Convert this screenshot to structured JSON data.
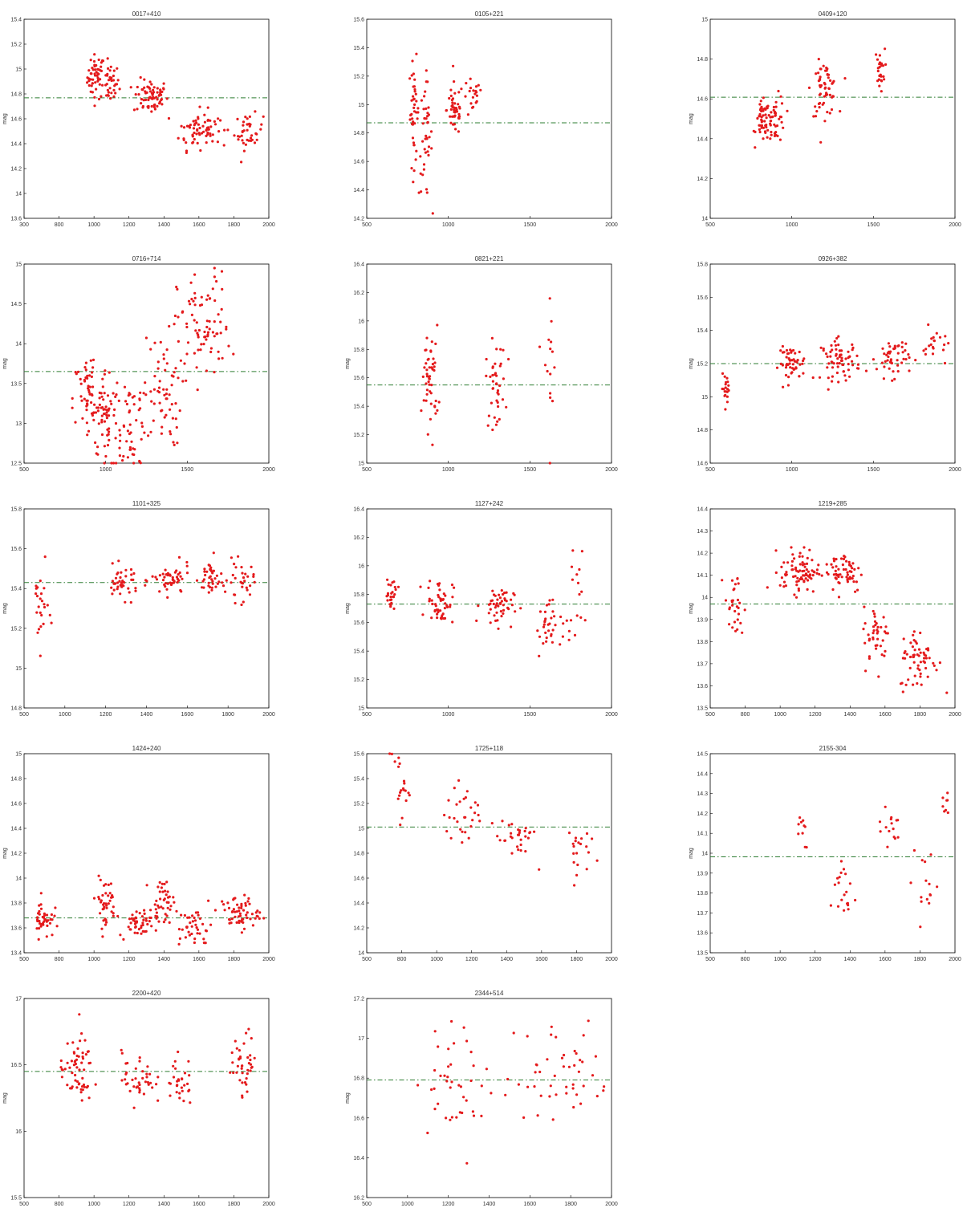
{
  "colors": {
    "points": "#e41a1c",
    "mean_line": "#2e7d32",
    "axis": "#000000"
  },
  "chart_data": [
    {
      "type": "scatter",
      "title": "0017+410",
      "xlabel": "",
      "ylabel": "mag",
      "xlim": [
        300,
        2000
      ],
      "ylim": [
        13.6,
        15.4
      ],
      "xticks": [
        "300",
        "800",
        "1000",
        "1200",
        "1400",
        "1600",
        "1800",
        "2000"
      ],
      "yticks": [
        "13.6",
        "14",
        "14.2",
        "14.4",
        "14.6",
        "14.8",
        "15",
        "15.2",
        "15.4"
      ],
      "mean": 14.69,
      "clusters": [
        [
          800,
          14.88,
          30,
          0.1,
          50
        ],
        [
          900,
          14.82,
          30,
          0.09,
          35
        ],
        [
          1180,
          14.7,
          60,
          0.08,
          70
        ],
        [
          1480,
          14.4,
          50,
          0.09,
          40
        ],
        [
          1580,
          14.42,
          40,
          0.08,
          30
        ],
        [
          1860,
          14.38,
          50,
          0.08,
          40
        ]
      ],
      "scatter": 0.25,
      "grid": false,
      "legend": "none"
    },
    {
      "type": "scatter",
      "title": "0105+221",
      "xlabel": "",
      "ylabel": "",
      "xlim": [
        500,
        2000
      ],
      "ylim": [
        14.1,
        15.6
      ],
      "xticks": [
        "500",
        "1000",
        "1500",
        "2000"
      ],
      "yticks": [
        "14.2",
        "14.4",
        "14.6",
        "14.8",
        "15",
        "15.2",
        "15.4",
        "15.6"
      ],
      "mean": 14.82,
      "clusters": [
        [
          790,
          14.9,
          15,
          0.2,
          40
        ],
        [
          860,
          14.7,
          20,
          0.22,
          40
        ],
        [
          1040,
          14.92,
          25,
          0.1,
          45
        ],
        [
          1150,
          15.0,
          30,
          0.08,
          20
        ]
      ],
      "scatter": 0.35,
      "grid": false,
      "legend": "none"
    },
    {
      "type": "scatter",
      "title": "0409+120",
      "xlabel": "",
      "ylabel": "mag",
      "xlim": [
        500,
        2000
      ],
      "ylim": [
        13.8,
        15.0
      ],
      "xticks": [
        "500",
        "1000",
        "1500",
        "2000"
      ],
      "yticks": [
        "14",
        "14.2",
        "14.4",
        "14.6",
        "14.8",
        "15"
      ],
      "mean": 14.53,
      "clusters": [
        [
          820,
          14.38,
          20,
          0.06,
          40
        ],
        [
          900,
          14.4,
          30,
          0.07,
          45
        ],
        [
          1200,
          14.58,
          40,
          0.08,
          60
        ],
        [
          1540,
          14.7,
          15,
          0.06,
          25
        ]
      ],
      "scatter": 0.3,
      "grid": false,
      "legend": "none"
    },
    {
      "type": "scatter",
      "title": "0716+714",
      "xlabel": "",
      "ylabel": "mag",
      "xlim": [
        500,
        2000
      ],
      "ylim": [
        12.5,
        15.0
      ],
      "xticks": [
        "500",
        "1000",
        "1500",
        "2000"
      ],
      "yticks": [
        "12.5",
        "13",
        "13.5",
        "14",
        "14.5",
        "15"
      ],
      "mean": 13.65,
      "clusters": [
        [
          900,
          13.3,
          50,
          0.3,
          60
        ],
        [
          1000,
          13.1,
          40,
          0.3,
          50
        ],
        [
          1150,
          13.0,
          60,
          0.35,
          60
        ],
        [
          1350,
          13.4,
          60,
          0.35,
          60
        ],
        [
          1600,
          14.2,
          80,
          0.35,
          80
        ]
      ],
      "scatter": 0.6,
      "grid": false,
      "legend": "none"
    },
    {
      "type": "scatter",
      "title": "0821+221",
      "xlabel": "",
      "ylabel": "mag",
      "xlim": [
        500,
        2000
      ],
      "ylim": [
        15.0,
        16.4
      ],
      "xticks": [
        "500",
        "1000",
        "1500",
        "2000"
      ],
      "yticks": [
        "15",
        "15.2",
        "15.4",
        "15.6",
        "15.8",
        "16",
        "16.2",
        "16.4"
      ],
      "mean": 15.55,
      "clusters": [
        [
          890,
          15.6,
          25,
          0.18,
          50
        ],
        [
          1290,
          15.55,
          30,
          0.15,
          40
        ],
        [
          1620,
          15.7,
          20,
          0.3,
          15
        ]
      ],
      "scatter": 0.3,
      "grid": false,
      "legend": "none"
    },
    {
      "type": "scatter",
      "title": "0926+382",
      "xlabel": "",
      "ylabel": "mag",
      "xlim": [
        500,
        2000
      ],
      "ylim": [
        14.6,
        15.8
      ],
      "xticks": [
        "500",
        "1000",
        "1500",
        "2000"
      ],
      "yticks": [
        "14.6",
        "14.8",
        "15",
        "15.2",
        "15.4",
        "15.6",
        "15.8"
      ],
      "mean": 15.2,
      "clusters": [
        [
          600,
          15.05,
          15,
          0.04,
          20
        ],
        [
          1000,
          15.2,
          40,
          0.05,
          50
        ],
        [
          1300,
          15.22,
          60,
          0.06,
          70
        ],
        [
          1620,
          15.24,
          50,
          0.06,
          50
        ],
        [
          1880,
          15.3,
          40,
          0.06,
          20
        ]
      ],
      "scatter": 0.2,
      "grid": false,
      "legend": "none"
    },
    {
      "type": "scatter",
      "title": "1101+325",
      "xlabel": "",
      "ylabel": "mag",
      "xlim": [
        500,
        2000
      ],
      "ylim": [
        14.8,
        15.8
      ],
      "xticks": [
        "500",
        "1000",
        "1200",
        "1400",
        "1600",
        "1800",
        "2000"
      ],
      "yticks": [
        "14.8",
        "15",
        "15.2",
        "15.4",
        "15.6",
        "15.8"
      ],
      "mean": 15.43,
      "clusters": [
        [
          600,
          15.3,
          25,
          0.1,
          25
        ],
        [
          1100,
          15.43,
          50,
          0.04,
          40
        ],
        [
          1400,
          15.44,
          60,
          0.04,
          50
        ],
        [
          1650,
          15.45,
          40,
          0.05,
          40
        ],
        [
          1830,
          15.43,
          40,
          0.05,
          30
        ]
      ],
      "scatter": 0.2,
      "grid": false,
      "legend": "none"
    },
    {
      "type": "scatter",
      "title": "1127+242",
      "xlabel": "",
      "ylabel": "mag",
      "xlim": [
        500,
        2000
      ],
      "ylim": [
        15.0,
        16.4
      ],
      "xticks": [
        "500",
        "1000",
        "1500",
        "2000"
      ],
      "yticks": [
        "15",
        "15.2",
        "15.4",
        "15.6",
        "15.8",
        "16",
        "16.2",
        "16.4"
      ],
      "mean": 15.73,
      "clusters": [
        [
          650,
          15.8,
          20,
          0.06,
          25
        ],
        [
          950,
          15.75,
          40,
          0.08,
          50
        ],
        [
          1300,
          15.72,
          50,
          0.07,
          50
        ],
        [
          1600,
          15.55,
          30,
          0.1,
          30
        ],
        [
          1760,
          15.7,
          30,
          0.2,
          20
        ]
      ],
      "scatter": 0.3,
      "grid": false,
      "legend": "none"
    },
    {
      "type": "scatter",
      "title": "1219+285",
      "xlabel": "",
      "ylabel": "mag",
      "xlim": [
        500,
        2000
      ],
      "ylim": [
        13.5,
        14.4
      ],
      "xticks": [
        "500",
        "800",
        "1000",
        "1200",
        "1400",
        "1600",
        "1800",
        "2000"
      ],
      "yticks": [
        "13.5",
        "13.6",
        "13.7",
        "13.8",
        "13.9",
        "14",
        "14.1",
        "14.2",
        "14.3",
        "14.4"
      ],
      "mean": 13.97,
      "clusters": [
        [
          650,
          13.95,
          30,
          0.08,
          30
        ],
        [
          1050,
          14.12,
          60,
          0.05,
          80
        ],
        [
          1320,
          14.12,
          60,
          0.05,
          60
        ],
        [
          1520,
          13.82,
          40,
          0.07,
          40
        ],
        [
          1780,
          13.72,
          60,
          0.07,
          60
        ]
      ],
      "scatter": 0.2,
      "grid": false,
      "legend": "none"
    },
    {
      "type": "scatter",
      "title": "1424+240",
      "xlabel": "",
      "ylabel": "mag",
      "xlim": [
        500,
        2000
      ],
      "ylim": [
        13.4,
        15.0
      ],
      "xticks": [
        "500",
        "800",
        "1000",
        "1200",
        "1400",
        "1600",
        "1800",
        "2000"
      ],
      "yticks": [
        "13.4",
        "13.6",
        "13.8",
        "14",
        "14.2",
        "14.4",
        "14.6",
        "14.8",
        "15"
      ],
      "mean": 13.68,
      "clusters": [
        [
          620,
          13.68,
          30,
          0.08,
          40
        ],
        [
          1000,
          13.8,
          30,
          0.1,
          40
        ],
        [
          1200,
          13.65,
          60,
          0.06,
          50
        ],
        [
          1350,
          13.82,
          40,
          0.08,
          40
        ],
        [
          1550,
          13.6,
          50,
          0.08,
          40
        ],
        [
          1820,
          13.72,
          60,
          0.07,
          60
        ]
      ],
      "scatter": 0.35,
      "grid": false,
      "legend": "none"
    },
    {
      "type": "scatter",
      "title": "1725+118",
      "xlabel": "",
      "ylabel": "",
      "xlim": [
        500,
        2000
      ],
      "ylim": [
        13.8,
        15.7
      ],
      "xticks": [
        "500",
        "800",
        "1000",
        "1200",
        "1400",
        "1600",
        "1800",
        "2000"
      ],
      "yticks": [
        "14",
        "14.2",
        "14.4",
        "14.6",
        "14.8",
        "15",
        "15.2",
        "15.4",
        "15.6"
      ],
      "mean": 15.0,
      "clusters": [
        [
          700,
          15.4,
          30,
          0.15,
          20
        ],
        [
          1100,
          15.1,
          60,
          0.15,
          30
        ],
        [
          1420,
          14.9,
          60,
          0.12,
          30
        ],
        [
          1780,
          14.8,
          40,
          0.12,
          20
        ]
      ],
      "scatter": 0.35,
      "grid": false,
      "legend": "none"
    },
    {
      "type": "scatter",
      "title": "2155-304",
      "xlabel": "",
      "ylabel": "mag",
      "xlim": [
        500,
        2000
      ],
      "ylim": [
        13.4,
        14.5
      ],
      "xticks": [
        "500",
        "800",
        "1000",
        "1200",
        "1400",
        "1600",
        "1800",
        "2000"
      ],
      "yticks": [
        "13.5",
        "13.6",
        "13.7",
        "13.8",
        "13.9",
        "14",
        "14.1",
        "14.2",
        "14.3",
        "14.4",
        "14.5"
      ],
      "mean": 13.93,
      "clusters": [
        [
          1050,
          14.05,
          30,
          0.08,
          10
        ],
        [
          1320,
          13.75,
          40,
          0.1,
          20
        ],
        [
          1600,
          14.1,
          40,
          0.05,
          15
        ],
        [
          1820,
          13.8,
          40,
          0.12,
          15
        ],
        [
          1940,
          14.2,
          20,
          0.08,
          8
        ]
      ],
      "scatter": 0.3,
      "grid": false,
      "legend": "none"
    },
    {
      "type": "scatter",
      "title": "2200+420",
      "xlabel": "",
      "ylabel": "mag",
      "xlim": [
        500,
        2000
      ],
      "ylim": [
        15.5,
        17.0
      ],
      "xticks": [
        "500",
        "800",
        "1000",
        "1200",
        "1400",
        "1600",
        "1800",
        "2000"
      ],
      "yticks": [
        "15.5",
        "16",
        "16.5",
        "17"
      ],
      "mean": 16.45,
      "clusters": [
        [
          820,
          16.45,
          50,
          0.12,
          60
        ],
        [
          1200,
          16.4,
          50,
          0.1,
          40
        ],
        [
          1450,
          16.38,
          40,
          0.1,
          30
        ],
        [
          1850,
          16.5,
          40,
          0.12,
          40
        ]
      ],
      "scatter": 0.35,
      "grid": false,
      "legend": "none"
    },
    {
      "type": "scatter",
      "title": "2344+514",
      "xlabel": "",
      "ylabel": "mag",
      "xlim": [
        500,
        2000
      ],
      "ylim": [
        16.2,
        17.3
      ],
      "xticks": [
        "500",
        "1000",
        "1200",
        "1400",
        "1600",
        "1800",
        "2000"
      ],
      "yticks": [
        "16.2",
        "16.4",
        "16.6",
        "16.8",
        "17",
        "17.2"
      ],
      "mean": 16.85,
      "clusters": [
        [
          1100,
          16.85,
          150,
          0.15,
          45
        ],
        [
          1700,
          16.9,
          150,
          0.15,
          45
        ]
      ],
      "scatter": 0.3,
      "grid": false,
      "legend": "none"
    }
  ]
}
